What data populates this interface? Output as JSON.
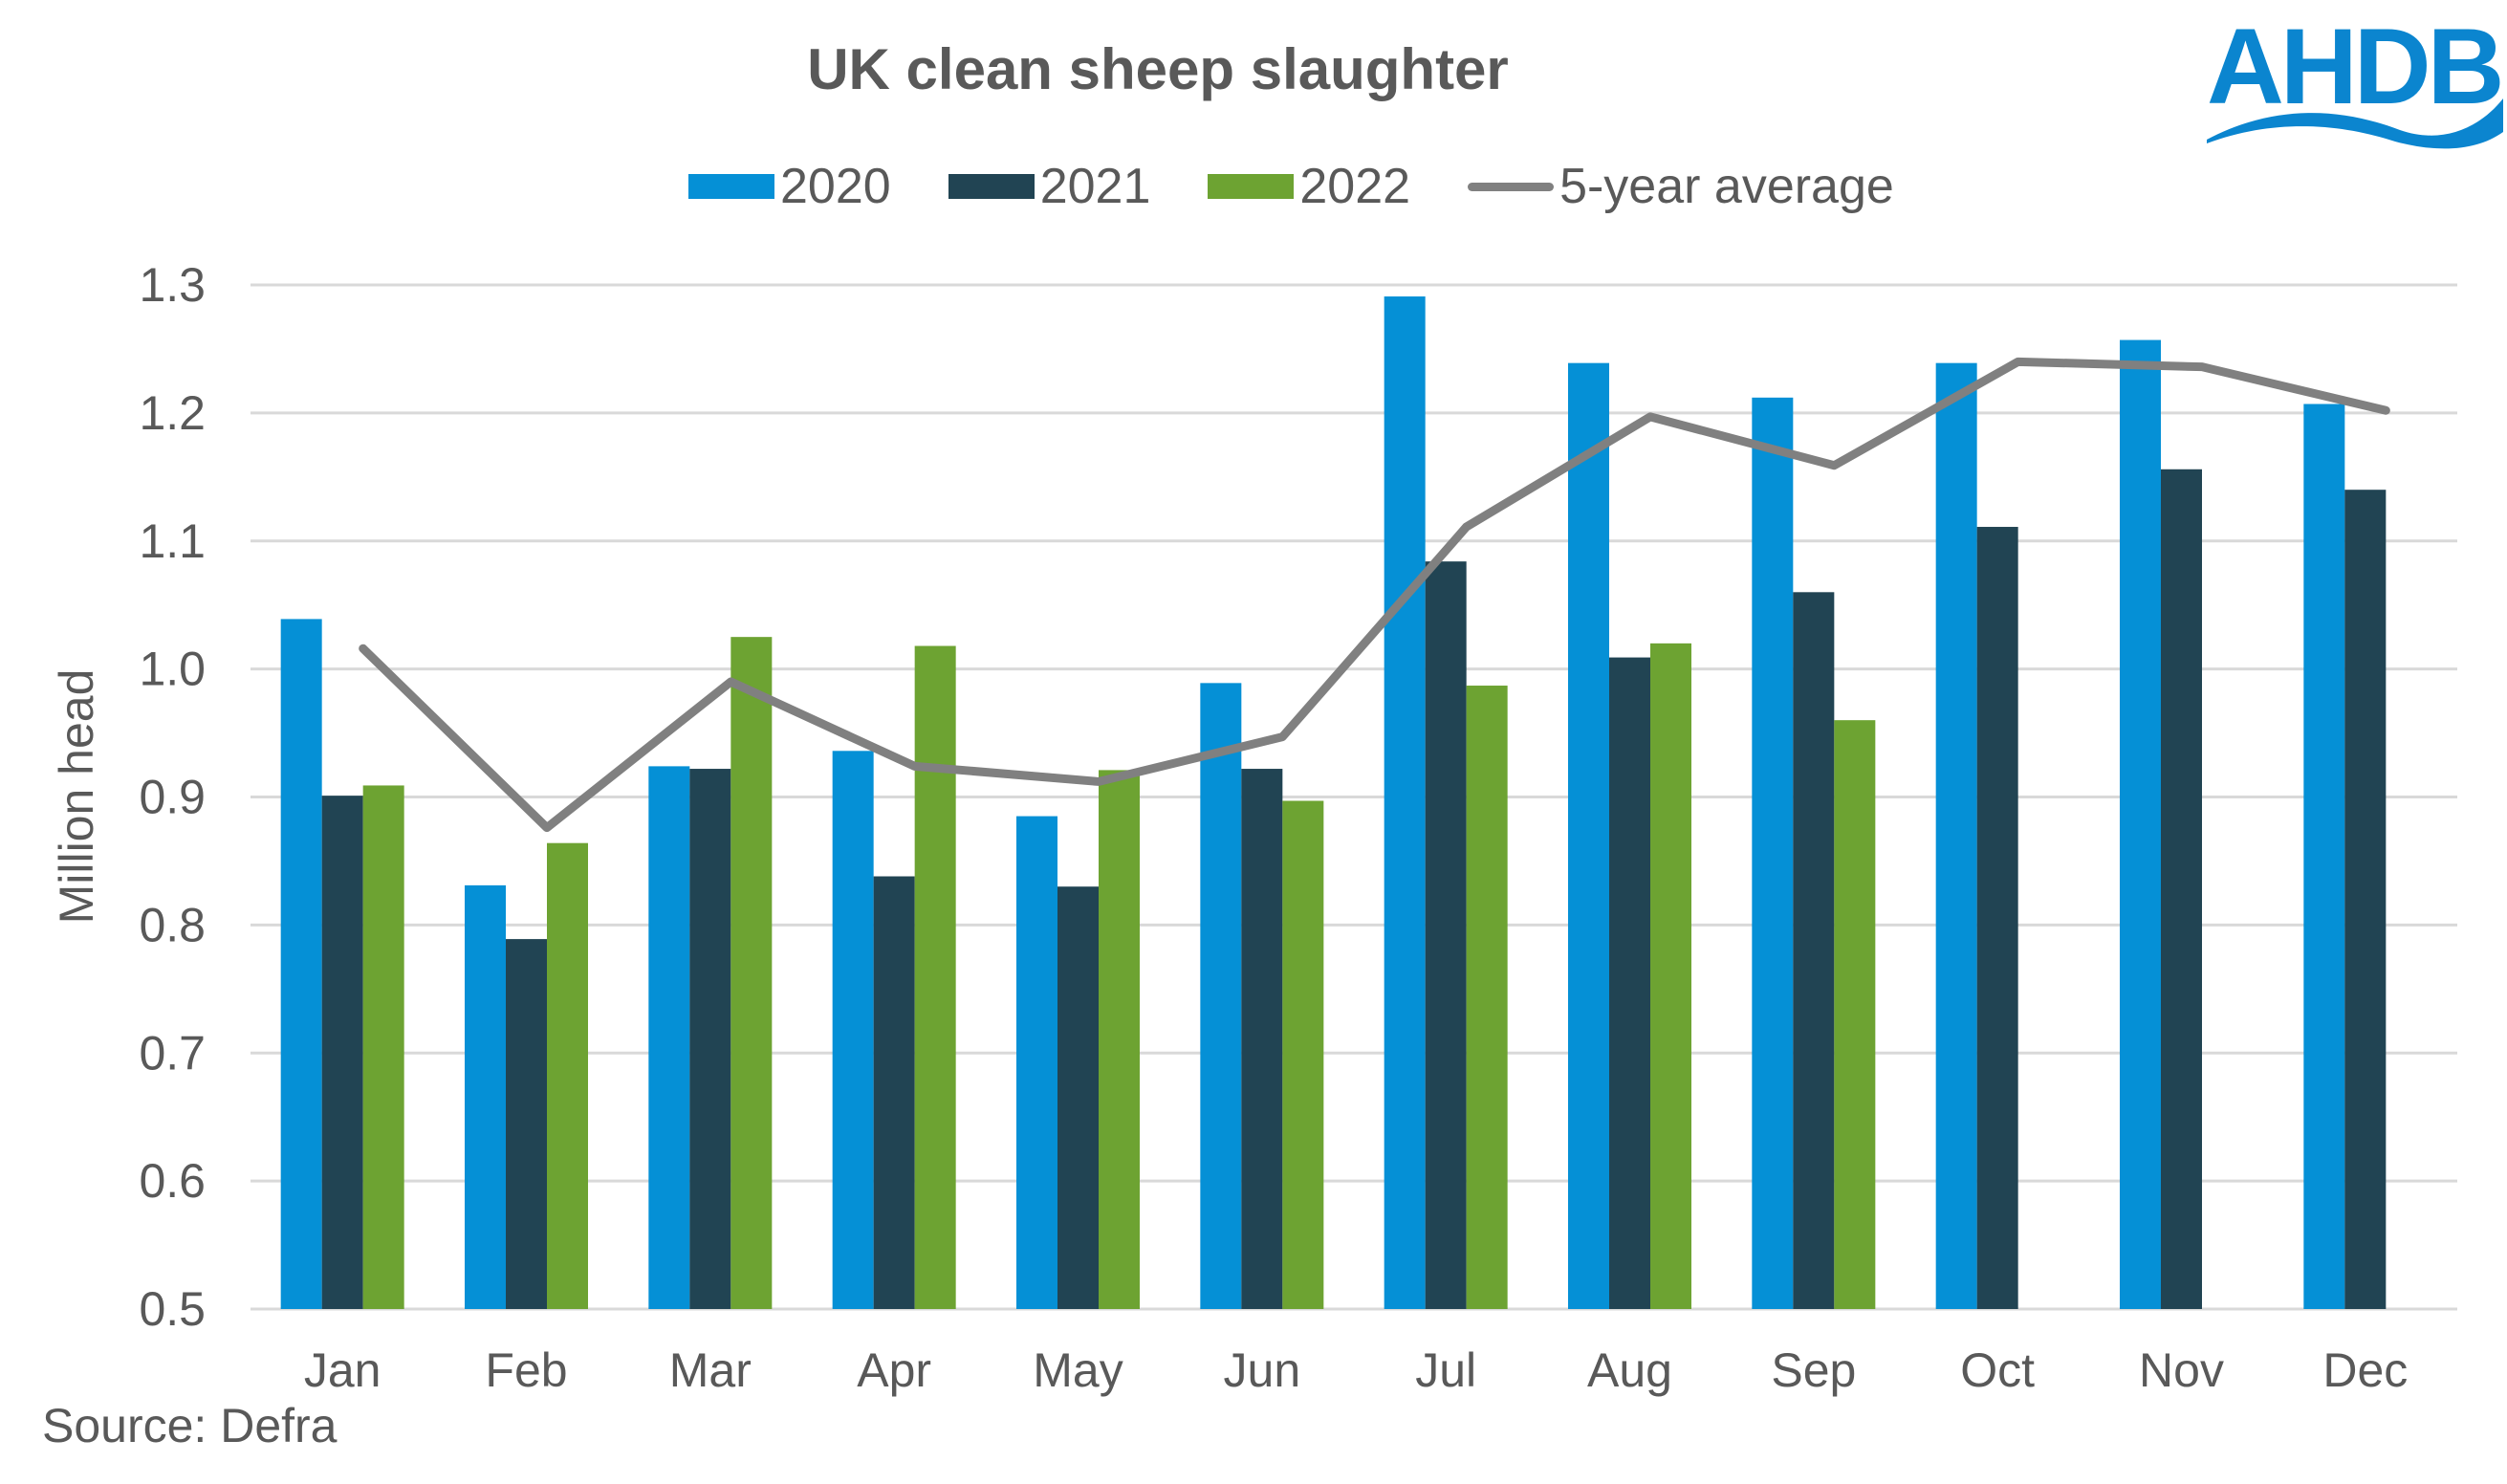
{
  "logo": {
    "text": "AHDB",
    "color": "#0B85CF"
  },
  "source": "Source: Defra",
  "chart_data": {
    "type": "bar",
    "title": "UK clean sheep slaughter",
    "xlabel": "",
    "ylabel": "Million head",
    "ylim": [
      0.5,
      1.3
    ],
    "yticks": [
      "0.5",
      "0.6",
      "0.7",
      "0.8",
      "0.9",
      "1.0",
      "1.1",
      "1.2",
      "1.3"
    ],
    "grid": true,
    "legend_position": "top-center",
    "categories": [
      "Jan",
      "Feb",
      "Mar",
      "Apr",
      "May",
      "Jun",
      "Jul",
      "Aug",
      "Sep",
      "Oct",
      "Nov",
      "Dec"
    ],
    "series": [
      {
        "name": "2020",
        "kind": "bar",
        "color": "#0590D6",
        "values": [
          1.039,
          0.831,
          0.924,
          0.936,
          0.885,
          0.989,
          1.291,
          1.239,
          1.212,
          1.239,
          1.257,
          1.207
        ]
      },
      {
        "name": "2021",
        "kind": "bar",
        "color": "#214453",
        "values": [
          0.901,
          0.789,
          0.922,
          0.838,
          0.83,
          0.922,
          1.084,
          1.009,
          1.06,
          1.111,
          1.156,
          1.14
        ]
      },
      {
        "name": "2022",
        "kind": "bar",
        "color": "#6DA332",
        "values": [
          0.909,
          0.864,
          1.025,
          1.018,
          0.921,
          0.897,
          0.987,
          1.02,
          0.96,
          null,
          null,
          null
        ]
      },
      {
        "name": "5-year average",
        "kind": "line",
        "color": "#808080",
        "values": [
          1.016,
          0.876,
          0.99,
          0.924,
          0.912,
          0.947,
          1.111,
          1.197,
          1.159,
          1.24,
          1.236,
          1.202
        ]
      }
    ]
  }
}
